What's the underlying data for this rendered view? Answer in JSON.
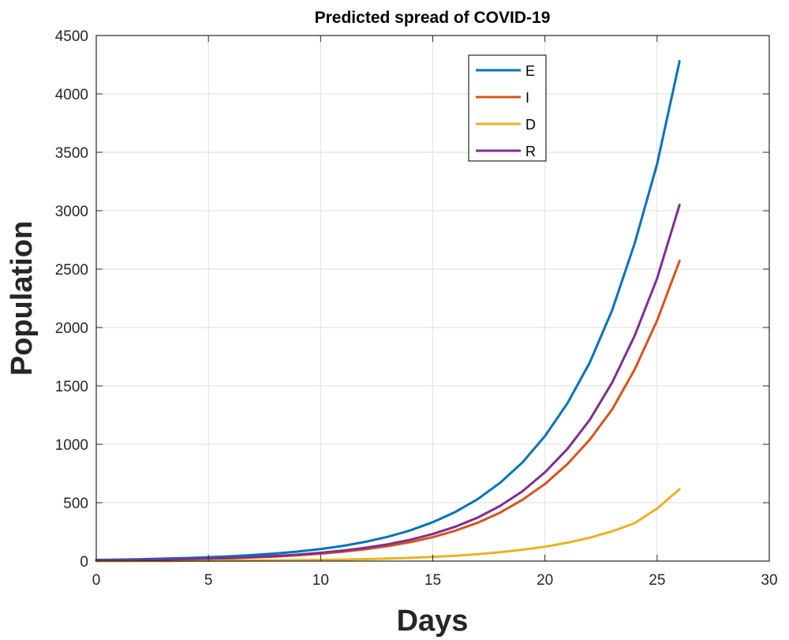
{
  "chart_data": {
    "type": "line",
    "title": "Predicted spread of COVID-19",
    "xlabel": "Days",
    "ylabel": "Population",
    "xlim": [
      0,
      30
    ],
    "ylim": [
      0,
      4500
    ],
    "xticks": [
      0,
      5,
      10,
      15,
      20,
      25,
      30
    ],
    "yticks": [
      0,
      500,
      1000,
      1500,
      2000,
      2500,
      3000,
      3500,
      4000,
      4500
    ],
    "grid": true,
    "legend_position": "top-center-right",
    "x": [
      0,
      1,
      2,
      3,
      4,
      5,
      6,
      7,
      8,
      9,
      10,
      11,
      12,
      13,
      14,
      15,
      16,
      17,
      18,
      19,
      20,
      21,
      22,
      23,
      24,
      25,
      26
    ],
    "series": [
      {
        "name": "E",
        "color": "#0072BD",
        "values": [
          10,
          13,
          16,
          21,
          26,
          33,
          41,
          52,
          65,
          82,
          103,
          130,
          165,
          208,
          263,
          333,
          420,
          530,
          670,
          845,
          1070,
          1350,
          1700,
          2150,
          2720,
          3400,
          4280
        ]
      },
      {
        "name": "I",
        "color": "#D95319",
        "values": [
          5,
          7,
          9,
          12,
          15,
          19,
          24,
          31,
          39,
          50,
          63,
          80,
          101,
          128,
          162,
          205,
          260,
          328,
          415,
          525,
          660,
          830,
          1040,
          1300,
          1640,
          2060,
          2570
        ]
      },
      {
        "name": "D",
        "color": "#EDB120",
        "values": [
          0,
          0,
          1,
          1,
          2,
          3,
          4,
          5,
          6,
          8,
          10,
          13,
          17,
          22,
          28,
          36,
          46,
          59,
          76,
          97,
          123,
          157,
          200,
          255,
          325,
          450,
          615
        ]
      },
      {
        "name": "R",
        "color": "#7E2F8E",
        "values": [
          6,
          8,
          10,
          13,
          17,
          21,
          27,
          35,
          44,
          56,
          71,
          90,
          114,
          144,
          183,
          232,
          294,
          372,
          472,
          598,
          760,
          960,
          1210,
          1530,
          1930,
          2420,
          3050
        ]
      }
    ]
  }
}
